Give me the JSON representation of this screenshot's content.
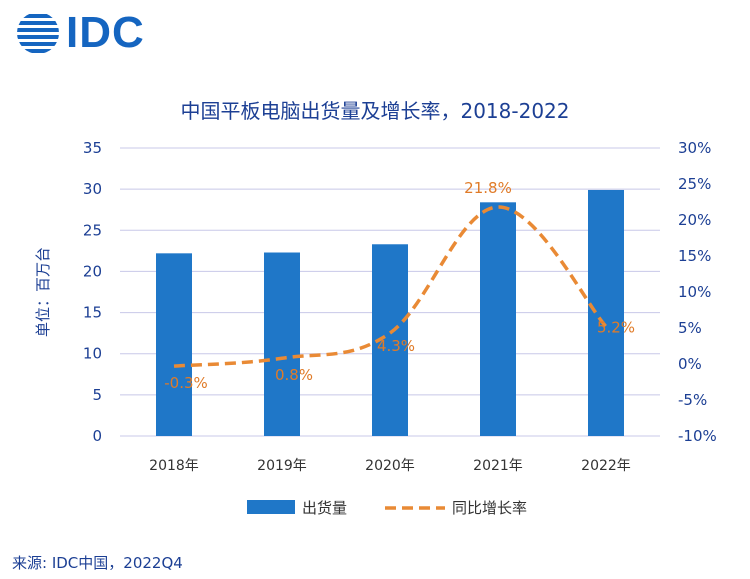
{
  "logo": {
    "text": "IDC"
  },
  "chart_data": {
    "type": "bar",
    "title": "中国平板电脑出货量及增长率，2018-2022",
    "categories": [
      "2018年",
      "2019年",
      "2020年",
      "2021年",
      "2022年"
    ],
    "series": [
      {
        "name": "出货量",
        "type": "bar",
        "axis": "left",
        "color": "#1f77c8",
        "values": [
          22.2,
          22.3,
          23.3,
          28.4,
          29.9
        ]
      },
      {
        "name": "同比增长率",
        "type": "line",
        "axis": "right",
        "color": "#e98a35",
        "dashed": true,
        "values": [
          -0.3,
          0.8,
          4.3,
          21.8,
          5.2
        ],
        "labels": [
          "-0.3%",
          "0.8%",
          "4.3%",
          "21.8%",
          "5.2%"
        ]
      }
    ],
    "ylabel": "单位：百万台",
    "ylim": [
      0,
      35
    ],
    "yticks": [
      "0",
      "5",
      "10",
      "15",
      "20",
      "25",
      "30",
      "35"
    ],
    "y2lim": [
      -10,
      30
    ],
    "y2ticks": [
      "-10%",
      "-5%",
      "0%",
      "5%",
      "10%",
      "15%",
      "20%",
      "25%",
      "30%"
    ],
    "grid": true,
    "legend": "bottom"
  },
  "source": "来源: IDC中国，2022Q4"
}
